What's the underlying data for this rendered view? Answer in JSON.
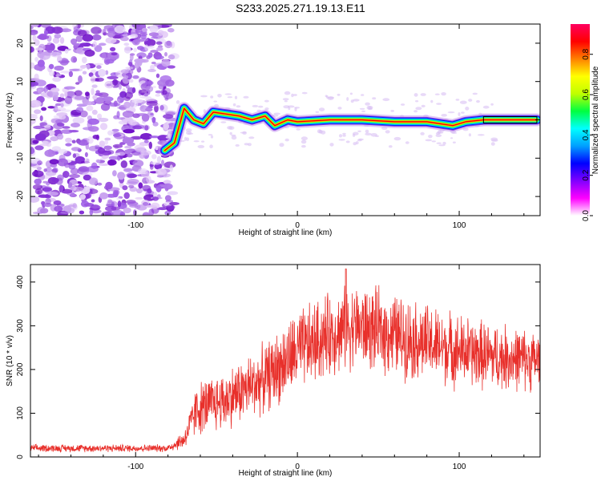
{
  "title": "S233.2025.271.19.13.E11",
  "chart_data": [
    {
      "type": "heatmap",
      "name": "spectrogram",
      "xlabel": "Height of straight line (km)",
      "ylabel": "Frequency (Hz)",
      "xlim": [
        -165,
        150
      ],
      "ylim": [
        -25,
        25
      ],
      "xticks": [
        -100,
        0,
        100
      ],
      "yticks": [
        -20,
        -10,
        0,
        10,
        20
      ],
      "colorbar": {
        "label": "Normalized spectral amplitude",
        "range": [
          0,
          0.95
        ],
        "ticks": [
          0.0,
          0.2,
          0.4,
          0.6,
          0.8
        ],
        "colormap": [
          "#ffffff",
          "#ff00ff",
          "#8000ff",
          "#0000ff",
          "#00a0ff",
          "#00ffff",
          "#00ff40",
          "#c0ff00",
          "#ffff00",
          "#ff8000",
          "#ff0000",
          "#ff0060"
        ]
      },
      "noise_region_x": [
        -165,
        -80
      ],
      "ridge": [
        {
          "x": -82,
          "y": -8
        },
        {
          "x": -76,
          "y": -6
        },
        {
          "x": -70,
          "y": 3
        },
        {
          "x": -64,
          "y": 0
        },
        {
          "x": -58,
          "y": -1
        },
        {
          "x": -52,
          "y": 2
        },
        {
          "x": -44,
          "y": 1.5
        },
        {
          "x": -36,
          "y": 1
        },
        {
          "x": -28,
          "y": 0
        },
        {
          "x": -20,
          "y": 1
        },
        {
          "x": -14,
          "y": -1.5
        },
        {
          "x": -6,
          "y": 0
        },
        {
          "x": 0,
          "y": -0.5
        },
        {
          "x": 20,
          "y": 0
        },
        {
          "x": 40,
          "y": 0
        },
        {
          "x": 60,
          "y": -0.5
        },
        {
          "x": 80,
          "y": -0.5
        },
        {
          "x": 96,
          "y": -1.5
        },
        {
          "x": 104,
          "y": -0.5
        },
        {
          "x": 115,
          "y": 0
        },
        {
          "x": 148,
          "y": 0
        }
      ]
    },
    {
      "type": "line",
      "name": "snr",
      "xlabel": "Height of straight line (km)",
      "ylabel": "SNR (10 * v/v)",
      "xlim": [
        -165,
        150
      ],
      "ylim": [
        0,
        440
      ],
      "xticks": [
        -100,
        0,
        100
      ],
      "yticks": [
        0,
        100,
        200,
        300,
        400
      ],
      "color": "#e8302b",
      "envelope": [
        {
          "x": -165,
          "mean": 20,
          "spread": 10
        },
        {
          "x": -80,
          "mean": 20,
          "spread": 10
        },
        {
          "x": -70,
          "mean": 40,
          "spread": 25
        },
        {
          "x": -62,
          "mean": 110,
          "spread": 70
        },
        {
          "x": -45,
          "mean": 130,
          "spread": 80
        },
        {
          "x": -20,
          "mean": 180,
          "spread": 90
        },
        {
          "x": 0,
          "mean": 240,
          "spread": 110
        },
        {
          "x": 20,
          "mean": 280,
          "spread": 110
        },
        {
          "x": 35,
          "mean": 300,
          "spread": 110
        },
        {
          "x": 60,
          "mean": 280,
          "spread": 110
        },
        {
          "x": 90,
          "mean": 250,
          "spread": 100
        },
        {
          "x": 120,
          "mean": 230,
          "spread": 90
        },
        {
          "x": 150,
          "mean": 220,
          "spread": 80
        }
      ],
      "max_value": 430,
      "max_x": 30
    }
  ]
}
